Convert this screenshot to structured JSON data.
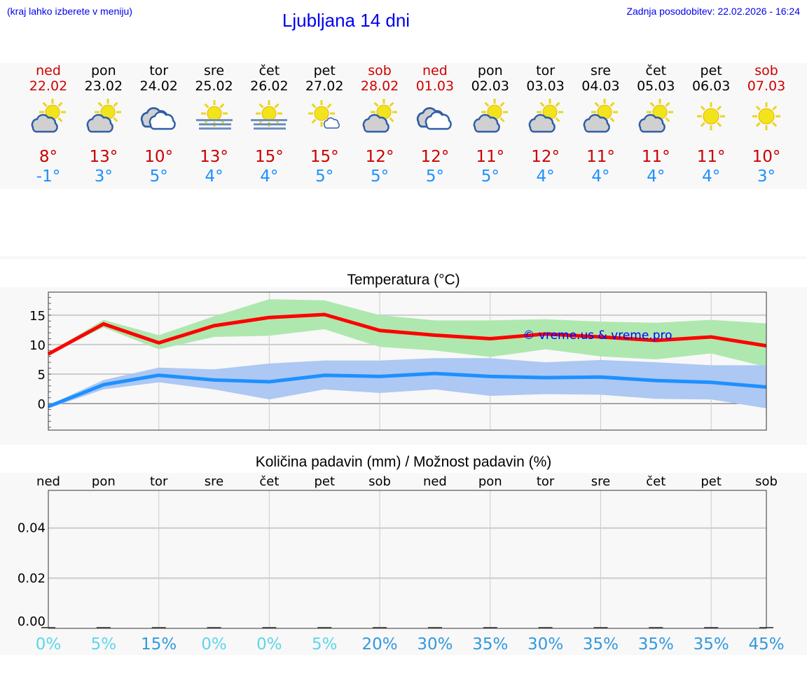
{
  "header": {
    "hint": "(kraj lahko izberete v meniju)",
    "title": "Ljubljana 14 dni",
    "updated": "Zadnja posodobitev: 22.02.2026 - 16:24"
  },
  "colors": {
    "weekend": "#d00000",
    "max": "#cc0000",
    "min": "#1e90ff",
    "max_band": "#aee8ae",
    "min_band": "#adc8f3",
    "pct_low": "#5dd6ea",
    "pct_high": "#3399dd"
  },
  "days": [
    {
      "name": "ned",
      "date": "22.02",
      "icon": "partly-cloudy-icon",
      "max": "8°",
      "min": "-1°",
      "weekend": true
    },
    {
      "name": "pon",
      "date": "23.02",
      "icon": "partly-cloudy-icon",
      "max": "13°",
      "min": "3°",
      "weekend": false
    },
    {
      "name": "tor",
      "date": "24.02",
      "icon": "cloudy-icon",
      "max": "10°",
      "min": "5°",
      "weekend": false
    },
    {
      "name": "sre",
      "date": "25.02",
      "icon": "sun-fog-icon",
      "max": "13°",
      "min": "4°",
      "weekend": false
    },
    {
      "name": "čet",
      "date": "26.02",
      "icon": "sun-fog-icon",
      "max": "15°",
      "min": "4°",
      "weekend": false
    },
    {
      "name": "pet",
      "date": "27.02",
      "icon": "mostly-sunny-icon",
      "max": "15°",
      "min": "5°",
      "weekend": false
    },
    {
      "name": "sob",
      "date": "28.02",
      "icon": "partly-cloudy-icon",
      "max": "12°",
      "min": "5°",
      "weekend": true
    },
    {
      "name": "ned",
      "date": "01.03",
      "icon": "cloudy-icon",
      "max": "12°",
      "min": "5°",
      "weekend": true
    },
    {
      "name": "pon",
      "date": "02.03",
      "icon": "partly-cloudy-icon",
      "max": "11°",
      "min": "5°",
      "weekend": false
    },
    {
      "name": "tor",
      "date": "03.03",
      "icon": "partly-cloudy-icon",
      "max": "12°",
      "min": "4°",
      "weekend": false
    },
    {
      "name": "sre",
      "date": "04.03",
      "icon": "partly-cloudy-icon",
      "max": "11°",
      "min": "4°",
      "weekend": false
    },
    {
      "name": "čet",
      "date": "05.03",
      "icon": "partly-cloudy-icon",
      "max": "11°",
      "min": "4°",
      "weekend": false
    },
    {
      "name": "pet",
      "date": "06.03",
      "icon": "sunny-icon",
      "max": "11°",
      "min": "4°",
      "weekend": false
    },
    {
      "name": "sob",
      "date": "07.03",
      "icon": "sunny-icon",
      "max": "10°",
      "min": "3°",
      "weekend": true
    }
  ],
  "chart_data": [
    {
      "type": "line",
      "title": "Temperatura (°C)",
      "ylim": [
        -4.5,
        18.9
      ],
      "yticks": [
        0,
        5,
        10,
        15
      ],
      "grid": true,
      "watermark": "© vreme.us & vreme.pro",
      "x": [
        "22.02",
        "23.02",
        "24.02",
        "25.02",
        "26.02",
        "27.02",
        "28.02",
        "01.03",
        "02.03",
        "03.03",
        "04.03",
        "05.03",
        "06.03",
        "07.03"
      ],
      "series": [
        {
          "role": "max",
          "values": [
            8.4,
            13.5,
            10.3,
            13.2,
            14.6,
            15.1,
            12.4,
            11.6,
            11.0,
            11.8,
            11.3,
            10.7,
            11.3,
            9.8
          ],
          "band_upper": [
            8.6,
            14.2,
            11.6,
            14.8,
            17.7,
            17.5,
            15.0,
            14.1,
            14.1,
            14.3,
            13.9,
            13.7,
            14.2,
            13.6
          ],
          "band_lower": [
            8.3,
            12.9,
            9.2,
            11.3,
            11.5,
            12.6,
            9.6,
            9.0,
            7.9,
            9.2,
            8.0,
            7.5,
            8.5,
            6.2
          ]
        },
        {
          "role": "min",
          "values": [
            -0.5,
            3.2,
            4.8,
            4.0,
            3.7,
            4.8,
            4.6,
            5.1,
            4.6,
            4.4,
            4.5,
            3.9,
            3.6,
            2.8
          ],
          "band_upper": [
            -0.3,
            4.0,
            6.1,
            5.8,
            6.8,
            7.3,
            7.3,
            7.7,
            7.7,
            7.0,
            7.4,
            7.0,
            6.5,
            6.5
          ],
          "band_lower": [
            -0.8,
            2.4,
            3.6,
            2.4,
            0.7,
            2.4,
            1.8,
            2.4,
            1.3,
            1.6,
            1.5,
            0.8,
            0.7,
            -0.8
          ]
        }
      ]
    },
    {
      "type": "bar",
      "title": "Količina padavin (mm) / Možnost padavin (%)",
      "ylim": [
        0,
        0.055
      ],
      "yticks": [
        "0.00",
        "0.02",
        "0.04"
      ],
      "grid": true,
      "categories": [
        "ned",
        "pon",
        "tor",
        "sre",
        "čet",
        "pet",
        "sob",
        "ned",
        "pon",
        "tor",
        "sre",
        "čet",
        "pet",
        "sob"
      ],
      "values": [
        0,
        0,
        0,
        0,
        0,
        0,
        0,
        0,
        0,
        0,
        0,
        0,
        0,
        0
      ],
      "probability": [
        "0%",
        "5%",
        "15%",
        "0%",
        "0%",
        "5%",
        "20%",
        "30%",
        "35%",
        "30%",
        "35%",
        "35%",
        "35%",
        "45%"
      ]
    }
  ]
}
